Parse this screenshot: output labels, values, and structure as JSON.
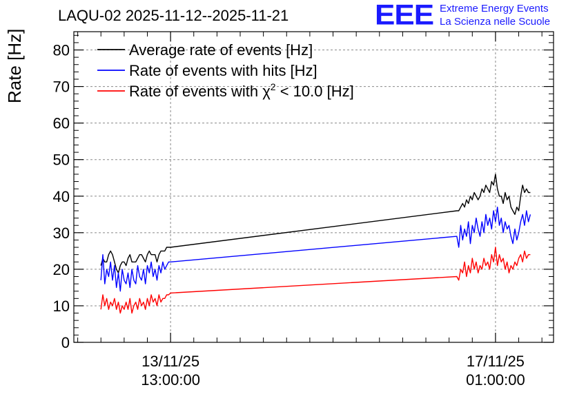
{
  "title": "LAQU-02 2025-11-12--2025-11-21",
  "logo": {
    "mark": "EEE",
    "line1": "Extreme Energy Events",
    "line2": "La Scienza nelle Scuole"
  },
  "chart_data": {
    "type": "line",
    "title": "LAQU-02 2025-11-12--2025-11-21",
    "xlabel": "",
    "ylabel": "Rate [Hz]",
    "ylim": [
      0,
      85
    ],
    "yticks": [
      0,
      10,
      20,
      30,
      40,
      50,
      60,
      70,
      80
    ],
    "x_units": "hours since 12/11/25 12:00:00",
    "xlim": [
      0,
      124
    ],
    "xticks": [
      {
        "x": 25,
        "date": "13/11/25",
        "time": "13:00:00"
      },
      {
        "x": 109,
        "date": "17/11/25",
        "time": "01:00:00"
      }
    ],
    "grid": true,
    "legend_position": "top-left",
    "legend": [
      {
        "label": "Average rate of events [Hz]",
        "color": "#000000"
      },
      {
        "label": "Rate of events with hits [Hz]",
        "color": "#0000ff"
      },
      {
        "label_prefix": "Rate of events with ",
        "label_symbol": "χ",
        "label_sup": "2",
        "label_suffix": " < 10.0 [Hz]",
        "color": "#ff0000"
      }
    ],
    "series": [
      {
        "name": "Average rate of events [Hz]",
        "color": "#000000",
        "x": [
          7.0,
          7.5,
          8.0,
          8.5,
          9.0,
          9.5,
          10.0,
          10.5,
          11.0,
          11.5,
          12.0,
          12.5,
          13.0,
          13.5,
          14.0,
          14.5,
          15.0,
          15.5,
          16.0,
          16.5,
          17.0,
          17.5,
          18.0,
          18.5,
          19.0,
          19.5,
          20.0,
          20.5,
          21.0,
          21.5,
          22.0,
          22.5,
          23.0,
          23.5,
          24.0,
          24.5,
          25.0,
          99.0,
          99.5,
          100.0,
          100.5,
          101.0,
          101.5,
          102.0,
          102.5,
          103.0,
          103.5,
          104.0,
          104.5,
          105.0,
          105.5,
          106.0,
          106.5,
          107.0,
          107.5,
          108.0,
          108.5,
          109.0,
          109.5,
          110.0,
          110.5,
          111.0,
          111.5,
          112.0,
          112.5,
          113.0,
          113.5,
          114.0,
          114.5,
          115.0,
          115.5,
          116.0,
          116.5,
          117.0,
          117.5,
          118.0
        ],
        "y": [
          21,
          23,
          22,
          22,
          24,
          25,
          24,
          22,
          20,
          19,
          21,
          22,
          22,
          21,
          23,
          24,
          22,
          22,
          22,
          23,
          24,
          24,
          23,
          22,
          24,
          25,
          24,
          24,
          24,
          22,
          24,
          25,
          25,
          25,
          26,
          26,
          26,
          36,
          36,
          37,
          38,
          37,
          39,
          38,
          40,
          39,
          41,
          40,
          39,
          40,
          42,
          41,
          43,
          42,
          41,
          44,
          43,
          46,
          42,
          40,
          40,
          38,
          41,
          39,
          40,
          37,
          36,
          35,
          37,
          36,
          40,
          43,
          41,
          42,
          41,
          41
        ]
      },
      {
        "name": "Rate of events with hits [Hz]",
        "color": "#0000ff",
        "x": [
          7.0,
          7.5,
          8.0,
          8.5,
          9.0,
          9.5,
          10.0,
          10.5,
          11.0,
          11.5,
          12.0,
          12.5,
          13.0,
          13.5,
          14.0,
          14.5,
          15.0,
          15.5,
          16.0,
          16.5,
          17.0,
          17.5,
          18.0,
          18.5,
          19.0,
          19.5,
          20.0,
          20.5,
          21.0,
          21.5,
          22.0,
          22.5,
          23.0,
          23.5,
          24.0,
          24.5,
          25.0,
          99.0,
          99.5,
          100.0,
          100.5,
          101.0,
          101.5,
          102.0,
          102.5,
          103.0,
          103.5,
          104.0,
          104.5,
          105.0,
          105.5,
          106.0,
          106.5,
          107.0,
          107.5,
          108.0,
          108.5,
          109.0,
          109.5,
          110.0,
          110.5,
          111.0,
          111.5,
          112.0,
          112.5,
          113.0,
          113.5,
          114.0,
          114.5,
          115.0,
          115.5,
          116.0,
          116.5,
          117.0,
          117.5,
          118.0
        ],
        "y": [
          17,
          24,
          16,
          20,
          18,
          22,
          17,
          21,
          15,
          19,
          14,
          20,
          17,
          16,
          19,
          15,
          20,
          17,
          16,
          21,
          18,
          17,
          20,
          16,
          21,
          19,
          22,
          18,
          20,
          17,
          21,
          19,
          22,
          20,
          21,
          22,
          22,
          29,
          26,
          32,
          28,
          31,
          29,
          33,
          27,
          32,
          30,
          34,
          31,
          29,
          33,
          30,
          35,
          32,
          34,
          31,
          36,
          33,
          37,
          32,
          34,
          30,
          33,
          31,
          32,
          29,
          27,
          31,
          28,
          30,
          33,
          35,
          32,
          36,
          33,
          35
        ]
      },
      {
        "name": "Rate of events with chi2 < 10.0 [Hz]",
        "color": "#ff0000",
        "x": [
          7.0,
          7.5,
          8.0,
          8.5,
          9.0,
          9.5,
          10.0,
          10.5,
          11.0,
          11.5,
          12.0,
          12.5,
          13.0,
          13.5,
          14.0,
          14.5,
          15.0,
          15.5,
          16.0,
          16.5,
          17.0,
          17.5,
          18.0,
          18.5,
          19.0,
          19.5,
          20.0,
          20.5,
          21.0,
          21.5,
          22.0,
          22.5,
          23.0,
          23.5,
          24.0,
          24.5,
          25.0,
          99.0,
          99.5,
          100.0,
          100.5,
          101.0,
          101.5,
          102.0,
          102.5,
          103.0,
          103.5,
          104.0,
          104.5,
          105.0,
          105.5,
          106.0,
          106.5,
          107.0,
          107.5,
          108.0,
          108.5,
          109.0,
          109.5,
          110.0,
          110.5,
          111.0,
          111.5,
          112.0,
          112.5,
          113.0,
          113.5,
          114.0,
          114.5,
          115.0,
          115.5,
          116.0,
          116.5,
          117.0,
          117.5,
          118.0
        ],
        "y": [
          9,
          13,
          10,
          12,
          9,
          11,
          10,
          12,
          9,
          11,
          8,
          10,
          9,
          11,
          9,
          12,
          8,
          10,
          11,
          9,
          12,
          10,
          11,
          9,
          12,
          10,
          13,
          11,
          12,
          10,
          13,
          11,
          12,
          12,
          13,
          13,
          13.5,
          18,
          17,
          20,
          19,
          22,
          18,
          21,
          19,
          23,
          20,
          22,
          19,
          21,
          20,
          23,
          21,
          22,
          20,
          24,
          22,
          26,
          21,
          24,
          22,
          23,
          20,
          22,
          19,
          21,
          20,
          22,
          21,
          23,
          24,
          22,
          25,
          23,
          24,
          24
        ]
      }
    ]
  }
}
